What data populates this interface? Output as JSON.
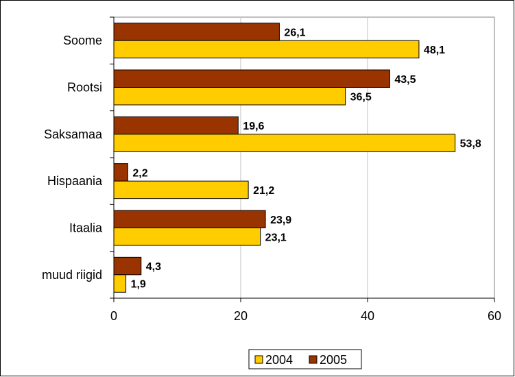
{
  "chart_data": {
    "type": "bar",
    "orientation": "horizontal",
    "categories": [
      "Soome",
      "Rootsi",
      "Saksamaa",
      "Hispaania",
      "Itaalia",
      "muud riigid"
    ],
    "series": [
      {
        "name": "2004",
        "color": "#FFCC00",
        "values": [
          48.1,
          36.5,
          53.8,
          21.2,
          23.1,
          1.9
        ],
        "labels": [
          "48,1",
          "36,5",
          "53,8",
          "21,2",
          "23,1",
          "1,9"
        ]
      },
      {
        "name": "2005",
        "color": "#993300",
        "values": [
          26.1,
          43.5,
          19.6,
          2.2,
          23.9,
          4.3
        ],
        "labels": [
          "26,1",
          "43,5",
          "19,6",
          "2,2",
          "23,9",
          "4,3"
        ]
      }
    ],
    "xlim": [
      0,
      60
    ],
    "xticks": [
      "0",
      "20",
      "40",
      "60"
    ],
    "grid": true,
    "legend_position": "bottom",
    "title": "",
    "xlabel": "",
    "ylabel": ""
  }
}
